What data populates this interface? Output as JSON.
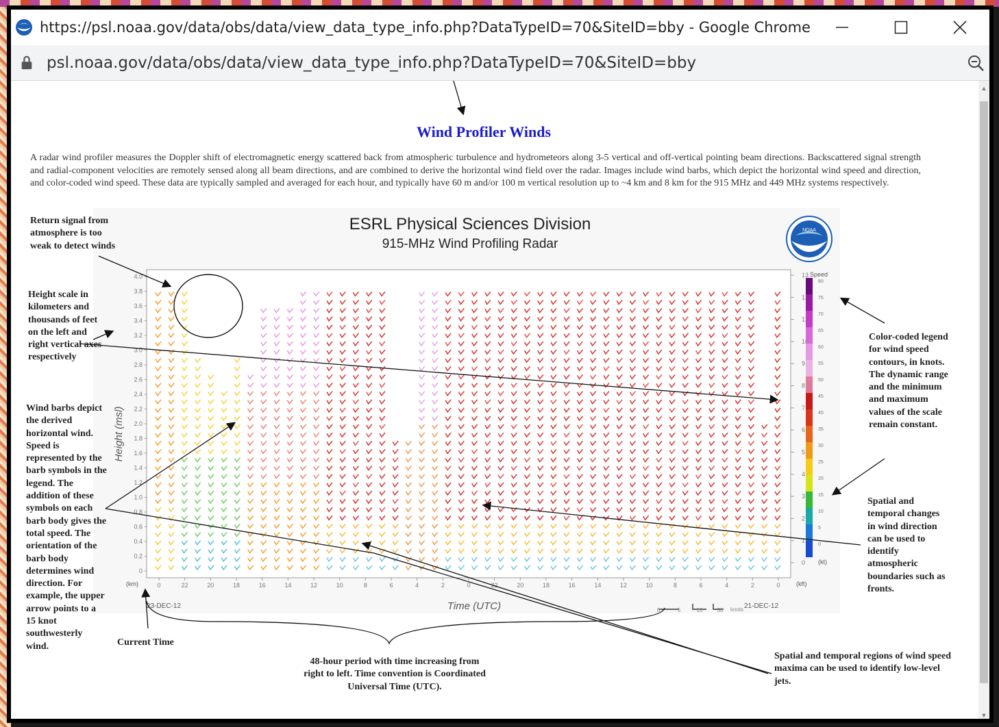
{
  "browser": {
    "window_title": "https://psl.noaa.gov/data/obs/data/view_data_type_info.php?DataTypeID=70&SiteID=bby - Google Chrome",
    "address": "psl.noaa.gov/data/obs/data/view_data_type_info.php?DataTypeID=70&SiteID=bby",
    "icons": [
      "noaa-favicon-icon",
      "minimize-icon",
      "maximize-icon",
      "close-icon",
      "lock-icon",
      "zoom-icon"
    ]
  },
  "page": {
    "title": "Wind Profiler Winds",
    "intro": "A radar wind profiler measures the Doppler shift of electromagnetic energy scattered back from atmospheric turbulence and hydrometeors along 3-5 vertical and off-vertical pointing beam directions. Backscattered signal strength and radial-component velocities are remotely sensed along all beam directions, and are combined to derive the horizontal wind field over the radar. Images include wind barbs, which depict the horizontal wind speed and direction, and color-coded wind speed. These data are typically sampled and averaged for each hour, and typically have 60 m and/or 100 m vertical resolution up to ~4 km and 8 km for the 915 MHz and 449 MHz systems respectively."
  },
  "figure": {
    "title": "ESRL Physical Sciences Division",
    "subtitle": "915-MHz Wind Profiling Radar",
    "left_axis_label": "Height (msl)",
    "left_unit": "(km)",
    "right_unit": "(kft)",
    "x_label": "Time (UTC)",
    "date_left": "23-DEC-12",
    "date_right": "21-DEC-12",
    "legend_title": "Speed",
    "legend_unit": "(kt)",
    "barb_legend_unit": "knots",
    "colors": {
      "legend_top": "#7a0a8a",
      "legend_mid": "#d41c1c",
      "legend_low": "#e9e41c",
      "legend_bottom": "#1a5ee0"
    }
  },
  "chart_data": {
    "type": "heatmap",
    "title": "ESRL Physical Sciences Division",
    "subtitle": "915-MHz Wind Profiling Radar",
    "xlabel": "Time (UTC)",
    "ylabel": "Height (msl)",
    "x_ticks": [
      "0",
      "22",
      "20",
      "18",
      "16",
      "14",
      "12",
      "10",
      "8",
      "6",
      "4",
      "2",
      "0",
      "22",
      "20",
      "18",
      "16",
      "14",
      "12",
      "10",
      "8",
      "6",
      "4",
      "2",
      "0"
    ],
    "y_ticks_km": [
      "4.0",
      "3.8",
      "3.6",
      "3.4",
      "3.2",
      "3.0",
      "2.8",
      "2.6",
      "2.4",
      "2.2",
      "2.0",
      "1.8",
      "1.6",
      "1.4",
      "1.2",
      "1.0",
      "0.8",
      "0.6",
      "0.4",
      "0.2",
      "0"
    ],
    "y_ticks_kft": [
      "13",
      "12",
      "11",
      "10",
      "9",
      "8",
      "7",
      "6",
      "5",
      "4",
      "3",
      "2",
      "1",
      "0"
    ],
    "speed_legend_kt": [
      "80",
      "75",
      "70",
      "65",
      "60",
      "55",
      "50",
      "45",
      "40",
      "35",
      "30",
      "25",
      "20",
      "15",
      "10",
      "5",
      "0"
    ],
    "barb_legend": [
      "0",
      "5",
      "10",
      "50"
    ],
    "ylim_km": [
      0,
      4.0
    ]
  },
  "annotations": {
    "return_signal": "Return signal from atmosphere is too weak to detect winds",
    "height_scale": "Height scale in kilometers and thousands of feet on the left and right vertical axes respectively",
    "wind_barbs": "Wind barbs depict the derived horizontal wind. Speed is represented by the barb symbols in the legend. The addition of these symbols on each barb body gives the total speed. The orientation of the barb body determines wind direction. For example, the upper arrow points to a 15 knot southwesterly wind.",
    "current_time": "Current Time",
    "period": "48-hour period with time increasing from right to left. Time convention is Coordinated Universal Time (UTC).",
    "color_legend": "Color-coded legend for wind speed contours, in knots. The dynamic range and the minimum and maximum values of the scale remain constant.",
    "spatial_temporal": "Spatial and temporal changes in wind direction can be used to identify atmospheric boundaries such as fronts.",
    "jets": "Spatial and temporal regions of wind speed maxima can be used to identify low-level jets."
  }
}
